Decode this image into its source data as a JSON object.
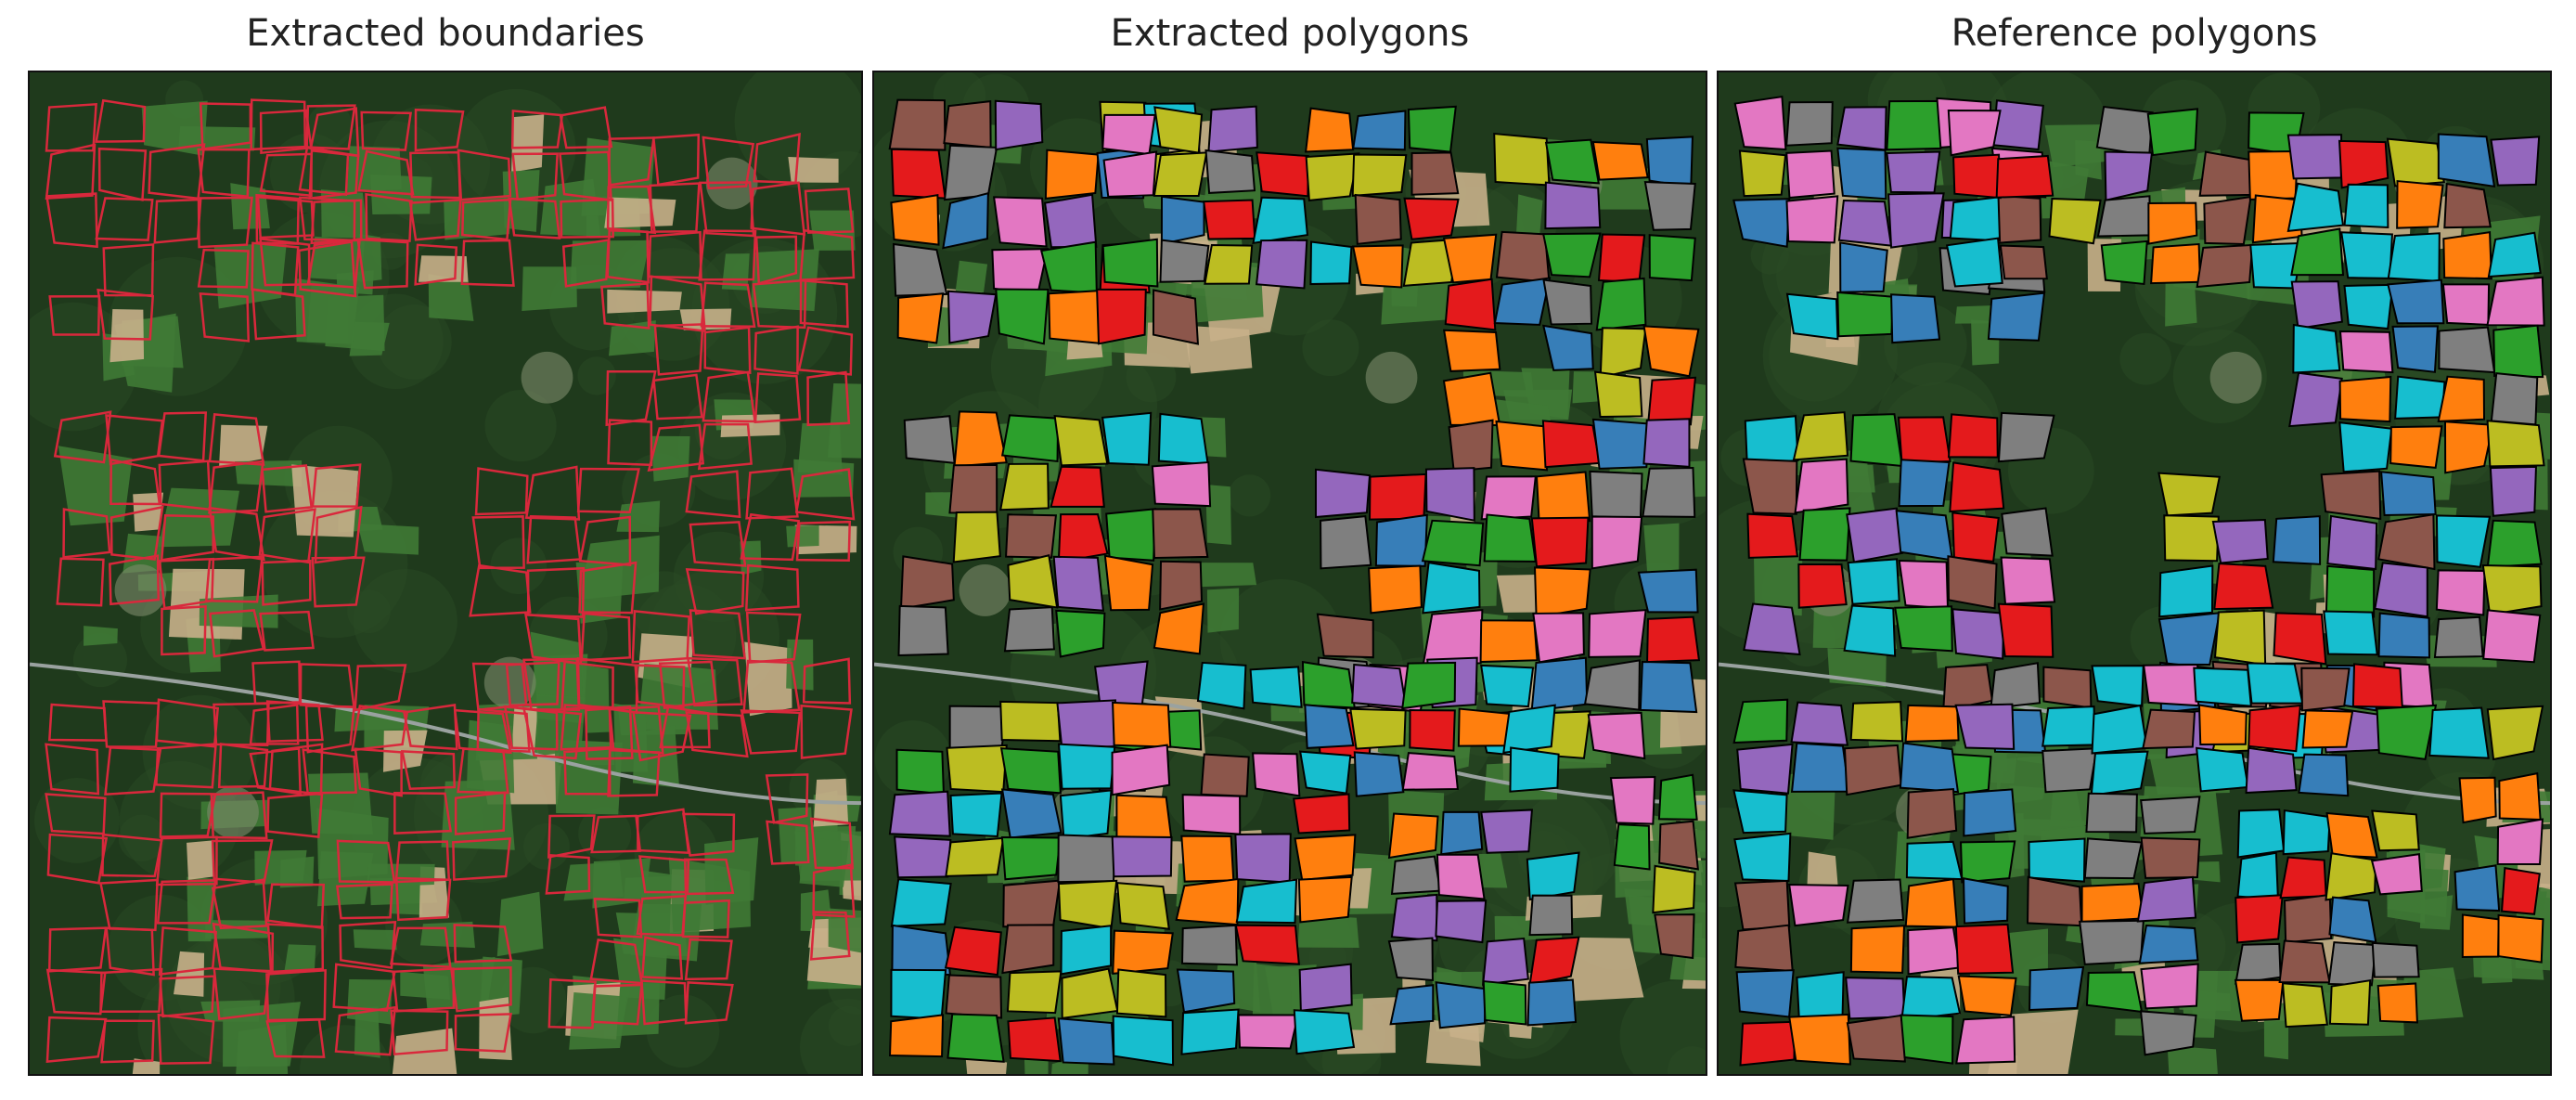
{
  "panels": [
    {
      "title": "Extracted boundaries",
      "style": "outline",
      "outline_color": "#d9283c"
    },
    {
      "title": "Extracted polygons",
      "style": "filled",
      "outline_color": "#000000"
    },
    {
      "title": "Reference polygons",
      "style": "filled",
      "outline_color": "#000000"
    }
  ],
  "imagery_colors": {
    "forest": "#1f3a1c",
    "forest_light": "#2a4a24",
    "field_green": "#3f7a35",
    "field_tan": "#c8b08a",
    "village": "#7d8a6a",
    "road": "#9aa2a0"
  },
  "fill_palette": [
    "#e41a1c",
    "#377eb8",
    "#2ca02c",
    "#ff7f0e",
    "#9467bd",
    "#8c564b",
    "#e377c2",
    "#7f7f7f",
    "#bcbd22",
    "#17becf"
  ]
}
